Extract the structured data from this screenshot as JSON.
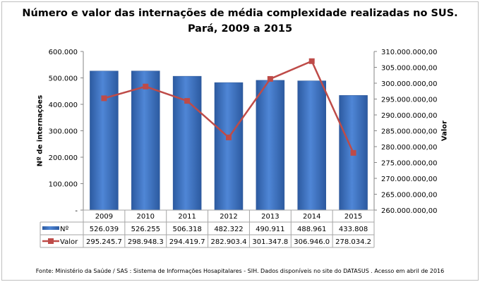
{
  "chart_data": {
    "type": "bar+line",
    "title": "Número e valor das internações de média complexidade realizadas no SUS.",
    "subtitle": "Pará, 2009 a 2015",
    "ylabel": "Nº de internações",
    "y2label": "Valor",
    "categories": [
      "2009",
      "2010",
      "2011",
      "2012",
      "2013",
      "2014",
      "2015"
    ],
    "ylim": [
      0,
      600000
    ],
    "y2lim": [
      260000000,
      310000000
    ],
    "yticks": [
      "-",
      "100.000",
      "200.000",
      "300.000",
      "400.000",
      "500.000",
      "600.000"
    ],
    "y2ticks": [
      "260.000.000,00",
      "265.000.000,00",
      "270.000.000,00",
      "275.000.000,00",
      "280.000.000,00",
      "285.000.000,00",
      "290.000.000,00",
      "295.000.000,00",
      "300.000.000,00",
      "305.000.000,00",
      "310.000.000,00"
    ],
    "series": [
      {
        "name": "Nº",
        "type": "bar",
        "axis": "left",
        "color": "#3d6fbd",
        "values": [
          526039,
          526255,
          506318,
          482322,
          490911,
          488961,
          433808
        ],
        "table_labels": [
          "526.039",
          "526.255",
          "506.318",
          "482.322",
          "490.911",
          "488.961",
          "433.808"
        ]
      },
      {
        "name": "Valor",
        "type": "line",
        "axis": "right",
        "color": "#be4b48",
        "values": [
          295245700,
          298948300,
          294419700,
          282903400,
          301347800,
          306946000,
          278034200
        ],
        "table_labels": [
          "295.245.7",
          "298.948.3",
          "294.419.7",
          "282.903.4",
          "301.347.8",
          "306.946.0",
          "278.034.2"
        ]
      }
    ],
    "grid": false,
    "legend": "data-table"
  },
  "footer": "Fonte:  Ministério da Saúde / SAS : Sistema de Informações Hosapitalares - SIH. Dados disponíveis no site do DATASUS . Acesso em abril de 2016"
}
